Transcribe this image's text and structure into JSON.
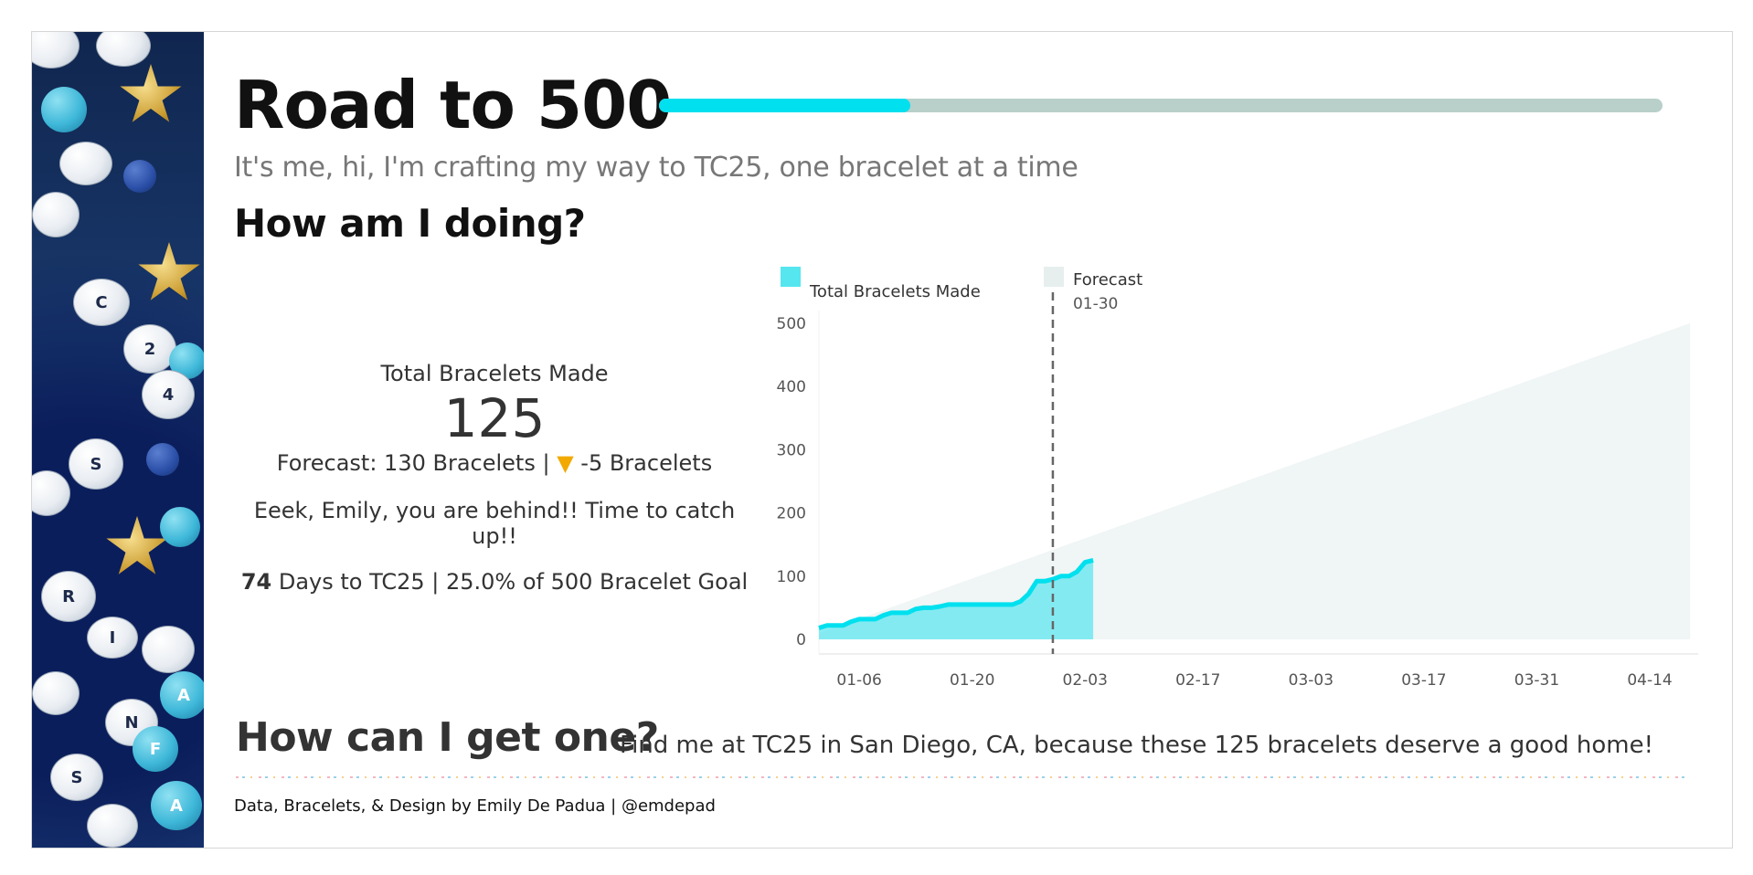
{
  "header": {
    "title": "Road to 500",
    "subtitle": "It's me, hi, I'm crafting my way to TC25, one bracelet at a time",
    "progress_fraction": 0.25,
    "progress_color": "#00e0ee",
    "track_color": "#b8cfca"
  },
  "sections": {
    "how_doing": "How am I doing?",
    "how_get": "How can I get one?"
  },
  "kpi": {
    "label": "Total Bracelets Made",
    "value": "125",
    "forecast_prefix": "Forecast:  130 Bracelets | ",
    "arrow": "▼",
    "delta": " -5 Bracelets",
    "message": "Eeek, Emily, you are behind!! Time to catch up!!",
    "days": "74",
    "days_rest": " Days to TC25 | 25.0% of 500 Bracelet Goal",
    "arrow_color": "#f2a900"
  },
  "cta": "Find me at TC25 in San Diego, CA, because these 125 bracelets deserve a good home!",
  "credit": "Data, Bracelets, & Design by Emily De Padua | @emdepad",
  "beads": {
    "letters": [
      "R",
      "S",
      "C",
      "2",
      "4",
      "N",
      "F",
      "A",
      "I",
      "S",
      "A"
    ]
  },
  "chart_data": {
    "type": "area",
    "legend": [
      {
        "name": "Total Bracelets Made",
        "color": "#55e6f0"
      },
      {
        "name": "Forecast",
        "color": "#e6efee"
      }
    ],
    "legend_placement": "top-left",
    "x_ticks": [
      "01-06",
      "01-20",
      "02-03",
      "02-17",
      "03-03",
      "03-17",
      "03-31",
      "04-14"
    ],
    "x_range": [
      "01-01",
      "04-20"
    ],
    "y_ticks": [
      0,
      100,
      200,
      300,
      400,
      500
    ],
    "ylim": [
      0,
      520
    ],
    "reference_line": {
      "x": "01-30",
      "label": "01-30"
    },
    "series": [
      {
        "name": "Total Bracelets Made",
        "color": "#00e0ee",
        "points": [
          [
            "01-01",
            18
          ],
          [
            "01-02",
            22
          ],
          [
            "01-03",
            22
          ],
          [
            "01-04",
            22
          ],
          [
            "01-05",
            28
          ],
          [
            "01-06",
            32
          ],
          [
            "01-07",
            32
          ],
          [
            "01-08",
            32
          ],
          [
            "01-09",
            38
          ],
          [
            "01-10",
            42
          ],
          [
            "01-11",
            42
          ],
          [
            "01-12",
            42
          ],
          [
            "01-13",
            48
          ],
          [
            "01-14",
            50
          ],
          [
            "01-15",
            50
          ],
          [
            "01-16",
            52
          ],
          [
            "01-17",
            55
          ],
          [
            "01-18",
            55
          ],
          [
            "01-19",
            55
          ],
          [
            "01-20",
            55
          ],
          [
            "01-21",
            55
          ],
          [
            "01-22",
            55
          ],
          [
            "01-23",
            55
          ],
          [
            "01-24",
            55
          ],
          [
            "01-25",
            55
          ],
          [
            "01-26",
            60
          ],
          [
            "01-27",
            72
          ],
          [
            "01-28",
            92
          ],
          [
            "01-29",
            92
          ],
          [
            "01-30",
            95
          ],
          [
            "01-31",
            100
          ],
          [
            "02-01",
            100
          ],
          [
            "02-02",
            107
          ],
          [
            "02-03",
            122
          ],
          [
            "02-04",
            125
          ]
        ]
      },
      {
        "name": "Forecast",
        "color": "#e6efee",
        "points": [
          [
            "01-01",
            10
          ],
          [
            "04-19",
            500
          ]
        ]
      }
    ]
  }
}
